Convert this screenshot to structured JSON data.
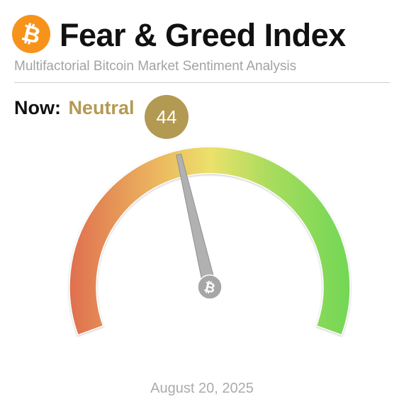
{
  "header": {
    "title": "Fear & Greed Index",
    "subtitle": "Multifactorial Bitcoin Market Sentiment Analysis",
    "logo_icon": "bitcoin-icon",
    "logo_color": "#f7931a"
  },
  "status": {
    "now_label": "Now:",
    "classification": "Neutral",
    "value": "44",
    "accent_color": "#b39a52"
  },
  "gauge": {
    "min": 0,
    "max": 100,
    "value": 44,
    "colors": [
      "#e0704f",
      "#ebb55e",
      "#ebe16b",
      "#a7dc5d",
      "#72d756"
    ],
    "pivot_icon": "bitcoin-icon"
  },
  "footer": {
    "date": "August 20, 2025"
  }
}
